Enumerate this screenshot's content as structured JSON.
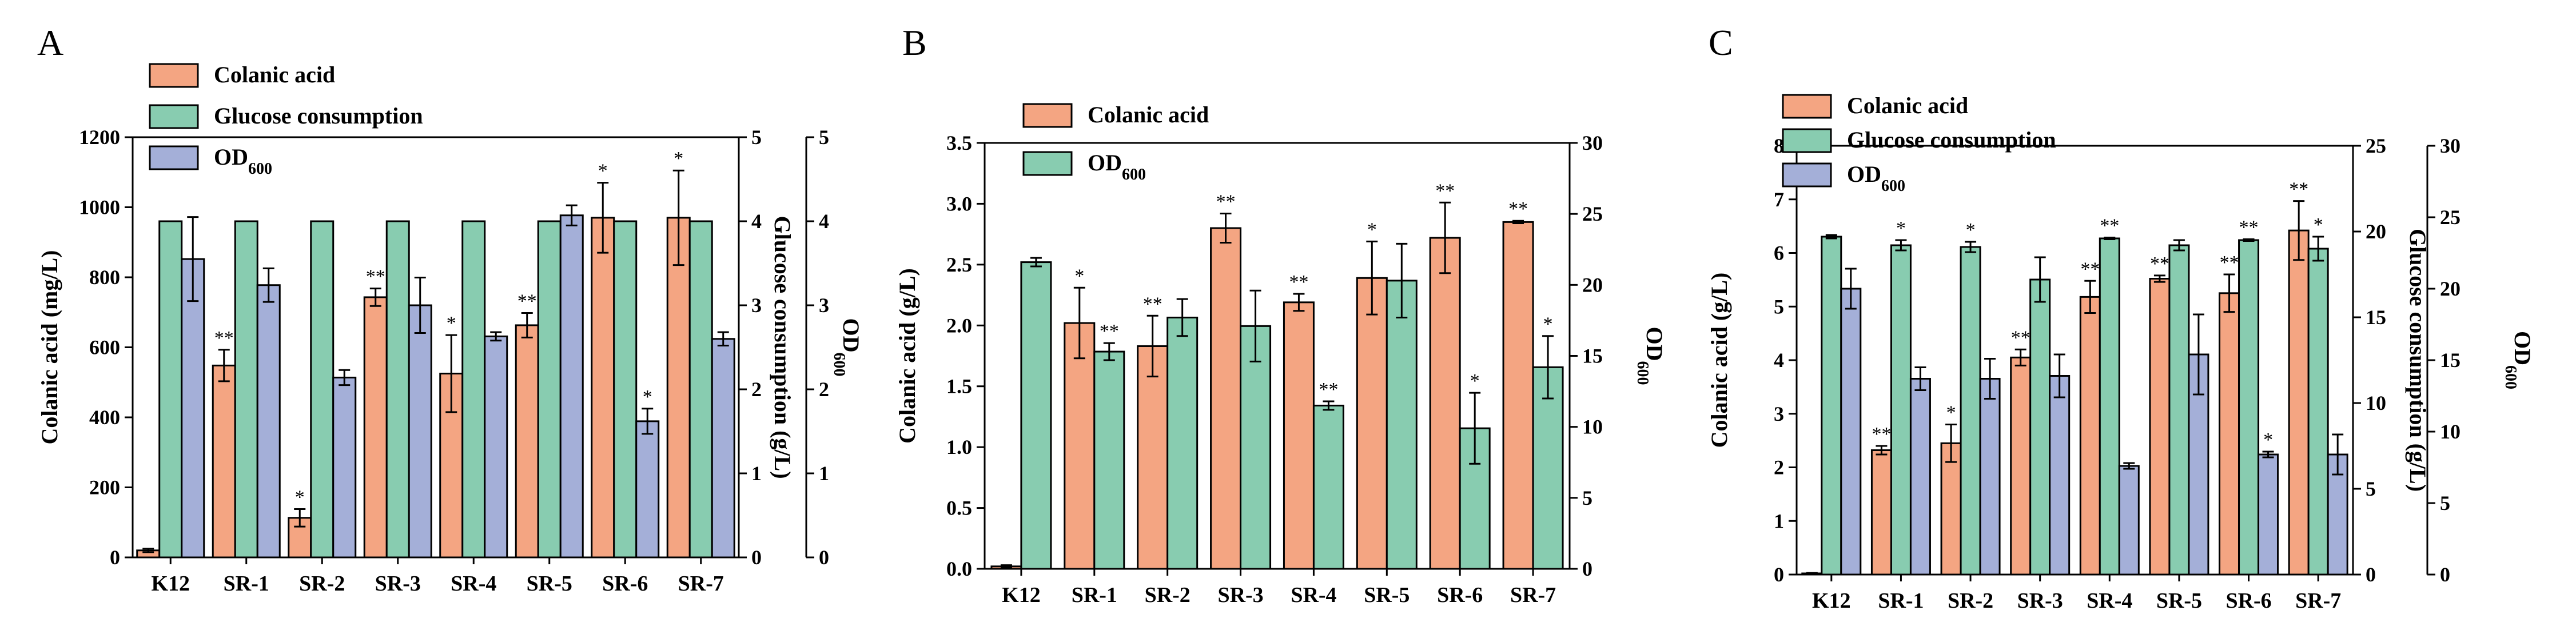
{
  "chart_data": [
    {
      "panel": "A",
      "type": "bar",
      "categories": [
        "K12",
        "SR-1",
        "SR-2",
        "SR-3",
        "SR-4",
        "SR-5",
        "SR-6",
        "SR-7"
      ],
      "series": [
        {
          "name": "Colanic acid",
          "axis": "left",
          "color": "#f4a582",
          "values": [
            20,
            548,
            113,
            743,
            525,
            663,
            970,
            970
          ],
          "errors": [
            5,
            45,
            25,
            25,
            110,
            35,
            100,
            135
          ],
          "sig": [
            "",
            "**",
            "*",
            "**",
            "*",
            "**",
            "*",
            "*"
          ]
        },
        {
          "name": "Glucose consumption",
          "axis": "right1",
          "color": "#88ccb0",
          "values": [
            4.0,
            4.0,
            4.0,
            4.0,
            4.0,
            4.0,
            4.0,
            4.0
          ],
          "errors": [
            0,
            0,
            0,
            0,
            0,
            0,
            0,
            0
          ],
          "sig": [
            "",
            "",
            "",
            "",
            "",
            "",
            "",
            ""
          ]
        },
        {
          "name": "OD600",
          "axis": "right2",
          "color": "#a4afd8",
          "values": [
            3.55,
            3.24,
            2.14,
            3.0,
            2.63,
            4.07,
            1.62,
            2.6
          ],
          "errors": [
            0.5,
            0.2,
            0.09,
            0.33,
            0.05,
            0.12,
            0.15,
            0.08
          ],
          "sig": [
            "",
            "",
            "",
            "",
            "",
            "",
            "*",
            ""
          ]
        }
      ],
      "ylabel": "Colanic acid (mg/L)",
      "ylim": [
        0,
        1200
      ],
      "yticks": [
        "0",
        "200",
        "400",
        "600",
        "800",
        "1000",
        "1200"
      ],
      "y2label": "Glucose consumption (g/L)",
      "y2lim": [
        0,
        5
      ],
      "y2ticks": [
        "0",
        "1",
        "2",
        "3",
        "4",
        "5"
      ],
      "y3label": "OD",
      "y3lim": [
        0,
        5
      ],
      "y3ticks": [
        "0",
        "1",
        "2",
        "3",
        "4",
        "5"
      ]
    },
    {
      "panel": "B",
      "type": "bar",
      "categories": [
        "K12",
        "SR-1",
        "SR-2",
        "SR-3",
        "SR-4",
        "SR-5",
        "SR-6",
        "SR-7"
      ],
      "series": [
        {
          "name": "Colanic acid",
          "axis": "left",
          "color": "#f4a582",
          "values": [
            0.02,
            2.02,
            1.83,
            2.8,
            2.19,
            2.39,
            2.72,
            2.85
          ],
          "errors": [
            0.01,
            0.29,
            0.25,
            0.12,
            0.07,
            0.3,
            0.29,
            0.01
          ],
          "sig": [
            "",
            "*",
            "**",
            "**",
            "**",
            "*",
            "**",
            "**"
          ]
        },
        {
          "name": "OD600",
          "axis": "right1",
          "color": "#88ccb0",
          "values": [
            21.6,
            15.3,
            17.7,
            17.1,
            11.5,
            20.3,
            9.9,
            14.2
          ],
          "errors": [
            0.3,
            0.6,
            1.3,
            2.5,
            0.3,
            2.6,
            2.5,
            2.2
          ],
          "sig": [
            "",
            "**",
            "",
            "",
            "**",
            "",
            "*",
            "*"
          ]
        }
      ],
      "ylabel": "Colanic acid (g/L)",
      "ylim": [
        0,
        3.5
      ],
      "yticks": [
        "0.0",
        "0.5",
        "1.0",
        "1.5",
        "2.0",
        "2.5",
        "3.0",
        "3.5"
      ],
      "y2label": "OD",
      "y2lim": [
        0,
        30
      ],
      "y2ticks": [
        "0",
        "5",
        "10",
        "15",
        "20",
        "25",
        "30"
      ]
    },
    {
      "panel": "C",
      "type": "bar",
      "categories": [
        "K12",
        "SR-1",
        "SR-2",
        "SR-3",
        "SR-4",
        "SR-5",
        "SR-6",
        "SR-7"
      ],
      "series": [
        {
          "name": "Colanic acid",
          "axis": "left",
          "color": "#f4a582",
          "values": [
            0.02,
            2.32,
            2.45,
            4.05,
            5.18,
            5.52,
            5.25,
            6.42
          ],
          "errors": [
            0.01,
            0.08,
            0.35,
            0.15,
            0.3,
            0.06,
            0.35,
            0.55
          ],
          "sig": [
            "",
            "**",
            "*",
            "**",
            "**",
            "**",
            "**",
            "**"
          ]
        },
        {
          "name": "Glucose consumption",
          "axis": "right1",
          "color": "#88ccb0",
          "values": [
            19.7,
            19.2,
            19.1,
            17.2,
            19.6,
            19.2,
            19.5,
            19.0
          ],
          "errors": [
            0.1,
            0.3,
            0.3,
            1.3,
            0.05,
            0.3,
            0.05,
            0.7
          ],
          "sig": [
            "",
            "*",
            "*",
            "",
            "**",
            "",
            "**",
            "*"
          ]
        },
        {
          "name": "OD600",
          "axis": "right2",
          "color": "#a4afd8",
          "values": [
            20.0,
            13.7,
            13.7,
            13.9,
            7.6,
            15.4,
            8.4,
            8.4
          ],
          "errors": [
            1.4,
            0.8,
            1.4,
            1.5,
            0.2,
            2.8,
            0.2,
            1.4
          ],
          "sig": [
            "",
            "",
            "",
            "",
            "",
            "",
            "*",
            ""
          ]
        }
      ],
      "ylabel": "Colanic acid (g/L)",
      "ylim": [
        0,
        8
      ],
      "yticks": [
        "0",
        "1",
        "2",
        "3",
        "4",
        "5",
        "6",
        "7",
        "8"
      ],
      "y2label": "Glucose consumption (g/L)",
      "y2lim": [
        0,
        25
      ],
      "y2ticks": [
        "0",
        "5",
        "10",
        "15",
        "20",
        "25"
      ],
      "y3label": "OD",
      "y3lim": [
        0,
        30
      ],
      "y3ticks": [
        "0",
        "5",
        "10",
        "15",
        "20",
        "25",
        "30"
      ]
    }
  ],
  "panel_labels": [
    "A",
    "B",
    "C"
  ],
  "legend": {
    "colanic": "Colanic acid",
    "glucose": "Glucose consumption",
    "od_main": "OD",
    "od_sub": "600"
  },
  "od_subscript": "600"
}
